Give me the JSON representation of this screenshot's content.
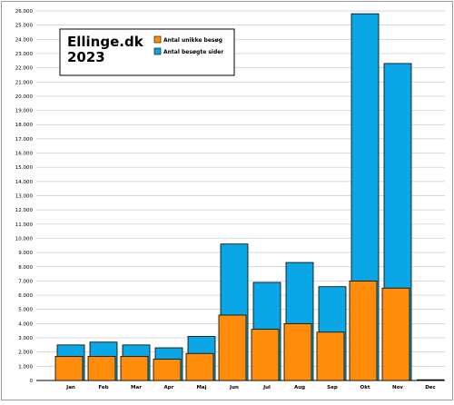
{
  "chart_data": {
    "type": "bar",
    "stacked": "overlay",
    "title": "Ellinge.dk",
    "subtitle": "2023",
    "categories": [
      "Jan",
      "Feb",
      "Mar",
      "Apr",
      "Maj",
      "Jun",
      "Jul",
      "Aug",
      "Sep",
      "Okt",
      "Nov",
      "Dec"
    ],
    "series": [
      {
        "name": "Antal unikke besøg",
        "color": "#ff8c0a",
        "values": [
          1700,
          1700,
          1700,
          1500,
          1900,
          4600,
          3600,
          4000,
          3400,
          7000,
          6500,
          0
        ]
      },
      {
        "name": "Antal besøgte sider",
        "color": "#0aa6e6",
        "values": [
          2500,
          2700,
          2500,
          2300,
          3100,
          9600,
          6900,
          8300,
          6600,
          25800,
          22300,
          0
        ]
      }
    ],
    "ylim": [
      0,
      26000
    ],
    "yticks": [
      "0",
      "1.000",
      "2.000",
      "3.000",
      "4.000",
      "5.000",
      "6.000",
      "7.000",
      "8.000",
      "9.000",
      "10.000",
      "11.000",
      "12.000",
      "13.000",
      "14.000",
      "15.000",
      "16.000",
      "17.000",
      "18.000",
      "19.000",
      "20.000",
      "21.000",
      "22.000",
      "23.000",
      "24.000",
      "25.000",
      "26.000"
    ],
    "grid": true,
    "legend_position": "top-left"
  }
}
